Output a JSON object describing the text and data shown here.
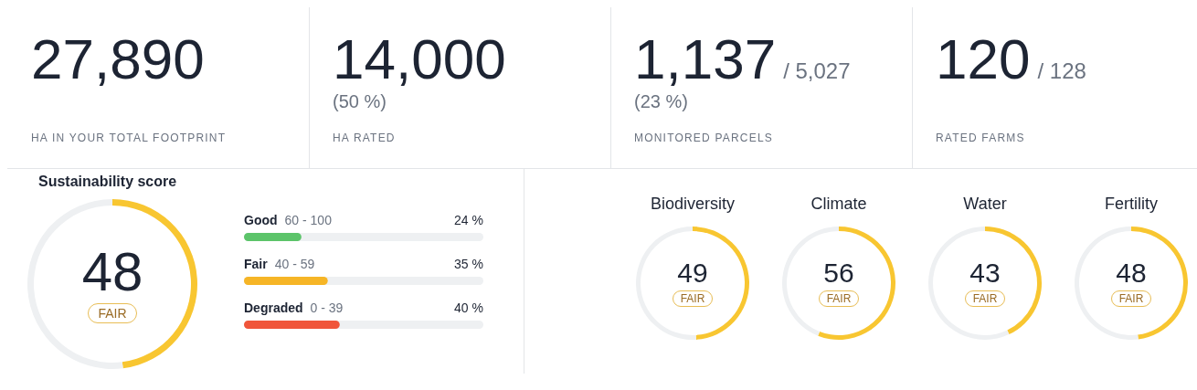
{
  "chart_data": [
    {
      "type": "other",
      "title": "27,890",
      "annotations": [
        "HA IN YOUR TOTAL FOOTPRINT"
      ]
    },
    {
      "type": "other",
      "title": "14,000",
      "annotations": [
        "(50 %)",
        "HA RATED"
      ]
    },
    {
      "type": "other",
      "title": "1,137",
      "subtitle": "/ 5,027",
      "annotations": [
        "(23 %)",
        "MONITORED PARCELS"
      ]
    },
    {
      "type": "other",
      "title": "120",
      "subtitle": "/ 128",
      "annotations": [
        "RATED FARMS"
      ]
    },
    {
      "type": "donut",
      "title": "Sustainability score",
      "categories": [
        null,
        null
      ],
      "values": [
        48,
        52
      ],
      "colors": [
        "#f8c631",
        "#eef0f2"
      ],
      "value_labels": [
        "48",
        null
      ],
      "annotations": [
        "FAIR"
      ]
    },
    {
      "type": "bar",
      "orientation": "horizontal",
      "categories": [
        "Good",
        "Fair",
        "Degraded"
      ],
      "values": [
        24,
        35,
        40
      ],
      "colors": [
        "#5cc46a",
        "#f6b526",
        "#f0553a"
      ],
      "xlim": [
        0,
        100
      ],
      "tick_labels": false,
      "value_labels": [
        "24 %",
        "35 %",
        "40 %"
      ],
      "annotations": [
        "60 - 100",
        "40 - 59",
        "0 - 39"
      ]
    },
    {
      "type": "donut",
      "title": "Biodiversity",
      "categories": [
        null,
        null
      ],
      "values": [
        49,
        51
      ],
      "colors": [
        "#f8c631",
        "#eef0f2"
      ],
      "value_labels": [
        "49",
        null
      ],
      "annotations": [
        "FAIR"
      ]
    },
    {
      "type": "donut",
      "title": "Climate",
      "categories": [
        null,
        null
      ],
      "values": [
        56,
        44
      ],
      "colors": [
        "#f8c631",
        "#eef0f2"
      ],
      "value_labels": [
        "56",
        null
      ],
      "annotations": [
        "FAIR"
      ]
    },
    {
      "type": "donut",
      "title": "Water",
      "categories": [
        null,
        null
      ],
      "values": [
        43,
        57
      ],
      "colors": [
        "#f8c631",
        "#eef0f2"
      ],
      "value_labels": [
        "43",
        null
      ],
      "annotations": [
        "FAIR"
      ]
    },
    {
      "type": "donut",
      "title": "Fertility",
      "categories": [
        null,
        null
      ],
      "values": [
        48,
        52
      ],
      "colors": [
        "#f8c631",
        "#eef0f2"
      ],
      "value_labels": [
        "48",
        null
      ],
      "annotations": [
        "FAIR"
      ]
    }
  ]
}
